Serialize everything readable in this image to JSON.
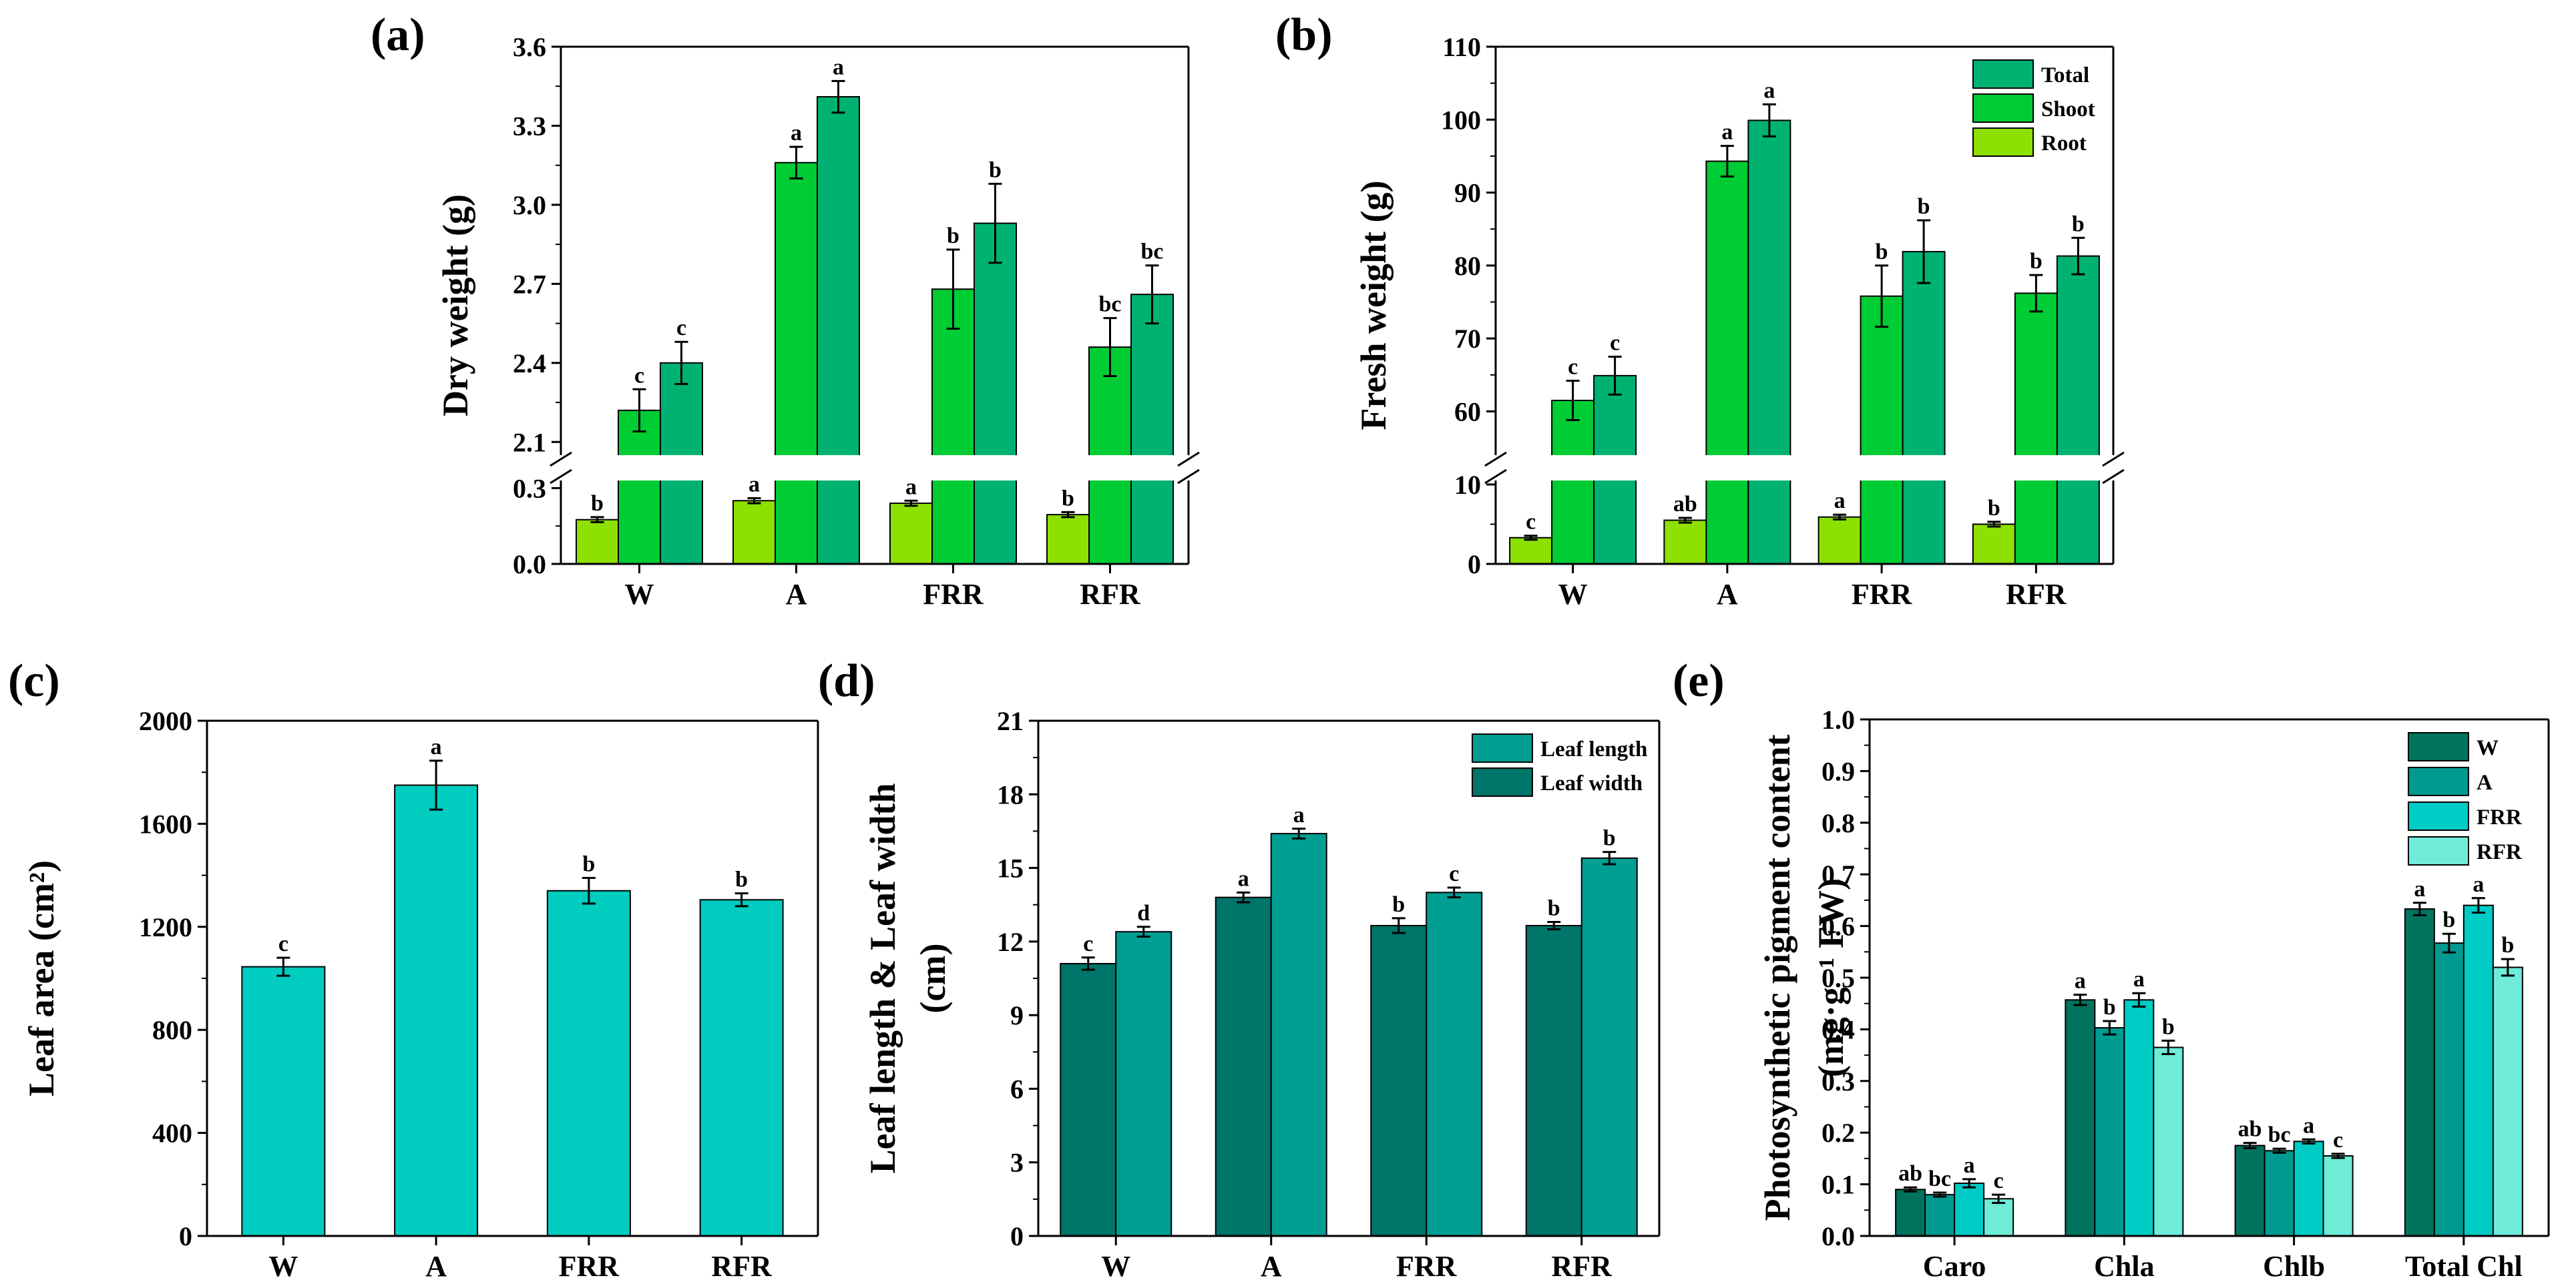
{
  "colors": {
    "root": "#8EE000",
    "shoot": "#00CC33",
    "total": "#00B272",
    "leaf_area": "#00CCC0",
    "leaf_length": "#009E93",
    "leaf_width": "#007569",
    "W": "#00735F",
    "A": "#009A90",
    "FRR": "#00CCC6",
    "RFR": "#6EECD8"
  },
  "chart_data": [
    {
      "id": "a",
      "letter": "(a)",
      "type": "bar",
      "broken_axis": true,
      "ylabel": "Dry weight (g)",
      "categories": [
        "W",
        "A",
        "FRR",
        "RFR"
      ],
      "lower_ylim": [
        0,
        0.33
      ],
      "lower_ticks": [
        "0.0",
        "0.3"
      ],
      "upper_ylim": [
        2.05,
        3.6
      ],
      "upper_ticks": [
        "2.1",
        "2.4",
        "2.7",
        "3.0",
        "3.3",
        "3.6"
      ],
      "series": [
        {
          "name": "Root",
          "color_key": "root",
          "values": [
            0.175,
            0.25,
            0.24,
            0.195
          ],
          "errors": [
            0.01,
            0.01,
            0.01,
            0.01
          ],
          "labels": [
            "b",
            "a",
            "a",
            "b"
          ]
        },
        {
          "name": "Shoot",
          "color_key": "shoot",
          "values": [
            2.22,
            3.16,
            2.68,
            2.46
          ],
          "errors": [
            0.08,
            0.06,
            0.15,
            0.11
          ],
          "labels": [
            "c",
            "a",
            "b",
            "bc"
          ]
        },
        {
          "name": "Total",
          "color_key": "total",
          "values": [
            2.4,
            3.41,
            2.93,
            2.66
          ],
          "errors": [
            0.08,
            0.06,
            0.15,
            0.11
          ],
          "labels": [
            "c",
            "a",
            "b",
            "bc"
          ]
        }
      ]
    },
    {
      "id": "b",
      "letter": "(b)",
      "type": "bar",
      "broken_axis": true,
      "ylabel": "Fresh weight (g)",
      "categories": [
        "W",
        "A",
        "FRR",
        "RFR"
      ],
      "lower_ylim": [
        0,
        10.5
      ],
      "lower_ticks": [
        "0",
        "10"
      ],
      "upper_ylim": [
        54,
        110
      ],
      "upper_ticks": [
        "60",
        "70",
        "80",
        "90",
        "100",
        "110"
      ],
      "legend": [
        "Total",
        "Shoot",
        "Root"
      ],
      "series": [
        {
          "name": "Root",
          "color_key": "root",
          "values": [
            3.3,
            5.5,
            5.9,
            5.0
          ],
          "errors": [
            0.25,
            0.3,
            0.3,
            0.3
          ],
          "labels": [
            "c",
            "ab",
            "a",
            "b"
          ]
        },
        {
          "name": "Shoot",
          "color_key": "shoot",
          "values": [
            61.5,
            94.3,
            75.8,
            76.2
          ],
          "errors": [
            2.7,
            2.1,
            4.2,
            2.5
          ],
          "labels": [
            "c",
            "a",
            "b",
            "b"
          ]
        },
        {
          "name": "Total",
          "color_key": "total",
          "values": [
            64.9,
            99.9,
            81.9,
            81.3
          ],
          "errors": [
            2.6,
            2.2,
            4.3,
            2.5
          ],
          "labels": [
            "c",
            "a",
            "b",
            "b"
          ]
        }
      ]
    },
    {
      "id": "c",
      "letter": "(c)",
      "type": "bar",
      "ylabel": "Leaf  area (cm²)",
      "categories": [
        "W",
        "A",
        "FRR",
        "RFR"
      ],
      "ylim": [
        0,
        2000
      ],
      "ticks": [
        "0",
        "400",
        "800",
        "1200",
        "1600",
        "2000"
      ],
      "series": [
        {
          "name": "Leaf area",
          "color_key": "leaf_area",
          "values": [
            1045,
            1750,
            1340,
            1305
          ],
          "errors": [
            35,
            95,
            50,
            25
          ],
          "labels": [
            "c",
            "a",
            "b",
            "b"
          ]
        }
      ]
    },
    {
      "id": "d",
      "letter": "(d)",
      "type": "bar",
      "ylabel_lines": [
        "Leaf length & Leaf width",
        "(cm)"
      ],
      "categories": [
        "W",
        "A",
        "FRR",
        "RFR"
      ],
      "ylim": [
        0,
        21
      ],
      "ticks": [
        "0",
        "3",
        "6",
        "9",
        "12",
        "15",
        "18",
        "21"
      ],
      "legend": [
        "Leaf length",
        "Leaf width"
      ],
      "series": [
        {
          "name": "Leaf width",
          "color_key": "leaf_width",
          "values": [
            11.1,
            13.8,
            12.65,
            12.65
          ],
          "errors": [
            0.25,
            0.2,
            0.3,
            0.15
          ],
          "labels": [
            "c",
            "a",
            "b",
            "b"
          ]
        },
        {
          "name": "Leaf length",
          "color_key": "leaf_length",
          "values": [
            12.4,
            16.4,
            14.0,
            15.4
          ],
          "errors": [
            0.2,
            0.2,
            0.2,
            0.25
          ],
          "labels": [
            "d",
            "a",
            "c",
            "b"
          ]
        }
      ]
    },
    {
      "id": "e",
      "letter": "(e)",
      "type": "bar",
      "ylabel_lines": [
        "Photosynthetic pigment content",
        "(mg·g⁻¹ FW)"
      ],
      "categories": [
        "Caro",
        "Chla",
        "Chlb",
        "Total Chl"
      ],
      "ylim": [
        0,
        1.0
      ],
      "ticks": [
        "0.0",
        "0.1",
        "0.2",
        "0.3",
        "0.4",
        "0.5",
        "0.6",
        "0.7",
        "0.8",
        "0.9",
        "1.0"
      ],
      "legend": [
        "W",
        "A",
        "FRR",
        "RFR"
      ],
      "series": [
        {
          "name": "W",
          "color_key": "W",
          "values": [
            0.09,
            0.457,
            0.175,
            0.633
          ],
          "errors": [
            0.004,
            0.01,
            0.005,
            0.012
          ],
          "labels": [
            "ab",
            "a",
            "ab",
            "a"
          ]
        },
        {
          "name": "A",
          "color_key": "A",
          "values": [
            0.08,
            0.403,
            0.165,
            0.567
          ],
          "errors": [
            0.004,
            0.013,
            0.004,
            0.018
          ],
          "labels": [
            "bc",
            "b",
            "bc",
            "b"
          ]
        },
        {
          "name": "FRR",
          "color_key": "FRR",
          "values": [
            0.102,
            0.457,
            0.183,
            0.64
          ],
          "errors": [
            0.008,
            0.013,
            0.004,
            0.014
          ],
          "labels": [
            "a",
            "a",
            "a",
            "a"
          ]
        },
        {
          "name": "RFR",
          "color_key": "RFR",
          "values": [
            0.072,
            0.365,
            0.155,
            0.52
          ],
          "errors": [
            0.008,
            0.013,
            0.004,
            0.016
          ],
          "labels": [
            "c",
            "b",
            "c",
            "b"
          ]
        }
      ]
    }
  ]
}
